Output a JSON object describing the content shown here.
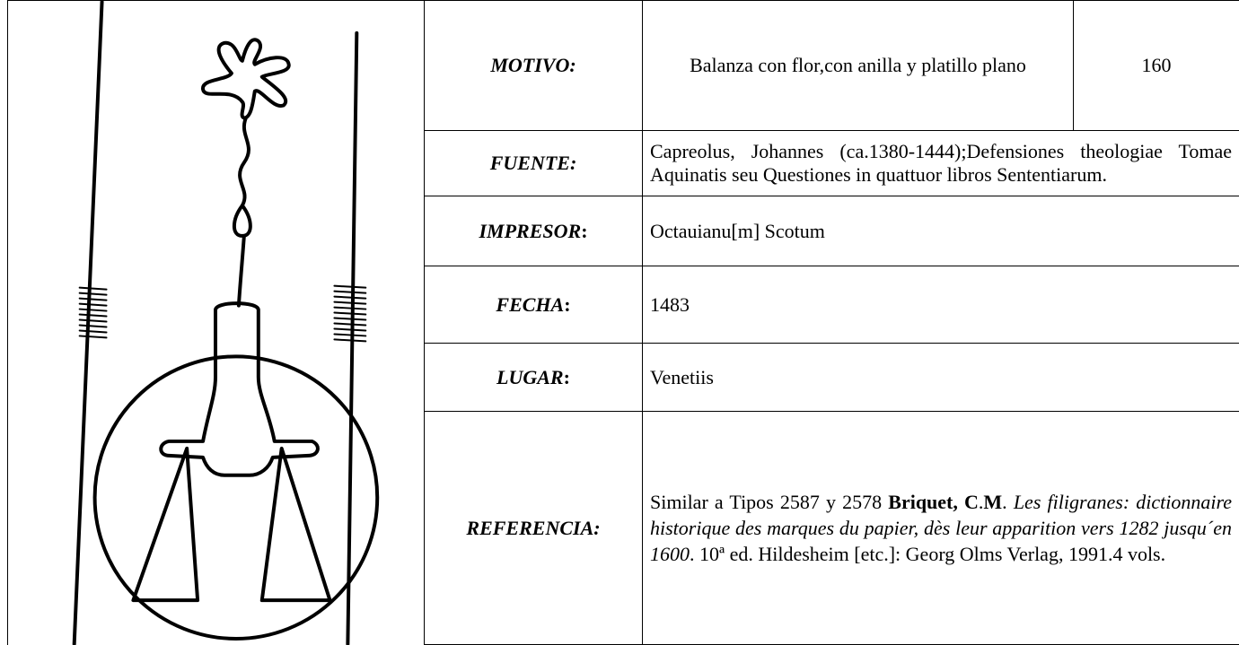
{
  "rows": [
    {
      "label": [
        "MOTIVO:"
      ],
      "value": "Balanza con flor,con anilla y platillo plano",
      "number": "160"
    },
    {
      "label": [
        "FUENTE:"
      ],
      "value": "Capreolus, Johannes (ca.1380-1444);Defensiones theologiae Tomae Aquinatis seu Questiones in quattuor libros Sententiarum."
    },
    {
      "label": [
        "IMPRESOR",
        ":"
      ],
      "value": "Octauianu[m] Scotum"
    },
    {
      "label": [
        "FECHA",
        ":"
      ],
      "value": "1483"
    },
    {
      "label": [
        "LUGAR",
        ":"
      ],
      "value": "Venetiis"
    },
    {
      "label": [
        "REFERENCIA:"
      ],
      "runs": [
        {
          "text": "Similar a Tipos 2587 y 2578 ",
          "style": "normal"
        },
        {
          "text": "Briquet, C",
          "style": "bold"
        },
        {
          "text": ".",
          "style": "normal"
        },
        {
          "text": "M",
          "style": "bold"
        },
        {
          "text": ". ",
          "style": "normal"
        },
        {
          "text": "Les filigranes: dictionnaire historique des marques du papier, dès leur apparition vers 1282 jusqu´en 1600",
          "style": "italic"
        },
        {
          "text": ". 10ª ed. Hildesheim [etc.]: Georg Olms Verlag, 1991.4 vols.",
          "style": "normal"
        }
      ]
    }
  ]
}
